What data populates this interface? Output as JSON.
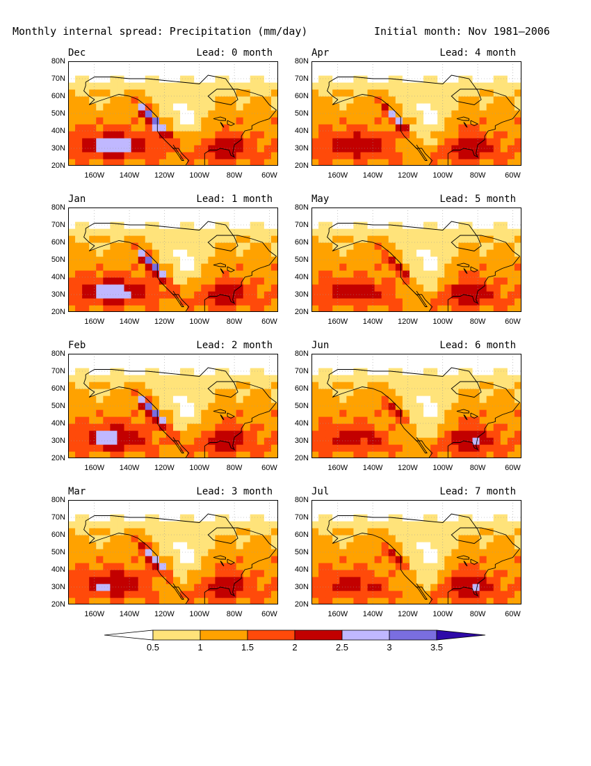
{
  "header": {
    "title_left": "Monthly internal spread: Precipitation (mm/day)",
    "title_right": "Initial month: Nov 1981–2006"
  },
  "colors": {
    "levels": [
      "#ffffff",
      "#ffe37a",
      "#ffa200",
      "#ff4a0a",
      "#c20000",
      "#c0b8ff",
      "#7a6ee0",
      "#2e0aa8"
    ],
    "coast": "#000000"
  },
  "chart_data": {
    "type": "heatmap",
    "units": "mm/day",
    "colorbar": {
      "thresholds": [
        0.5,
        1,
        1.5,
        2,
        2.5,
        3,
        3.5
      ]
    },
    "ylim": [
      20,
      80
    ],
    "xlim": [
      -175,
      -55
    ],
    "y_ticks": [
      "80N",
      "70N",
      "60N",
      "50N",
      "40N",
      "30N",
      "20N"
    ],
    "x_ticks": [
      "160W",
      "140W",
      "120W",
      "100W",
      "80W",
      "60W"
    ],
    "panels": [
      {
        "month": "Dec",
        "lead": "Lead: 0 month",
        "wet": 1.0
      },
      {
        "month": "Jan",
        "lead": "Lead: 1 month",
        "wet": 0.95
      },
      {
        "month": "Feb",
        "lead": "Lead: 2 month",
        "wet": 0.9
      },
      {
        "month": "Mar",
        "lead": "Lead: 3 month",
        "wet": 0.78
      },
      {
        "month": "Apr",
        "lead": "Lead: 4 month",
        "wet": 0.66
      },
      {
        "month": "May",
        "lead": "Lead: 5 month",
        "wet": 0.55
      },
      {
        "month": "Jun",
        "lead": "Lead: 6 month",
        "wet": 0.5
      },
      {
        "month": "Jul",
        "lead": "Lead: 7 month",
        "wet": 0.48
      }
    ]
  }
}
